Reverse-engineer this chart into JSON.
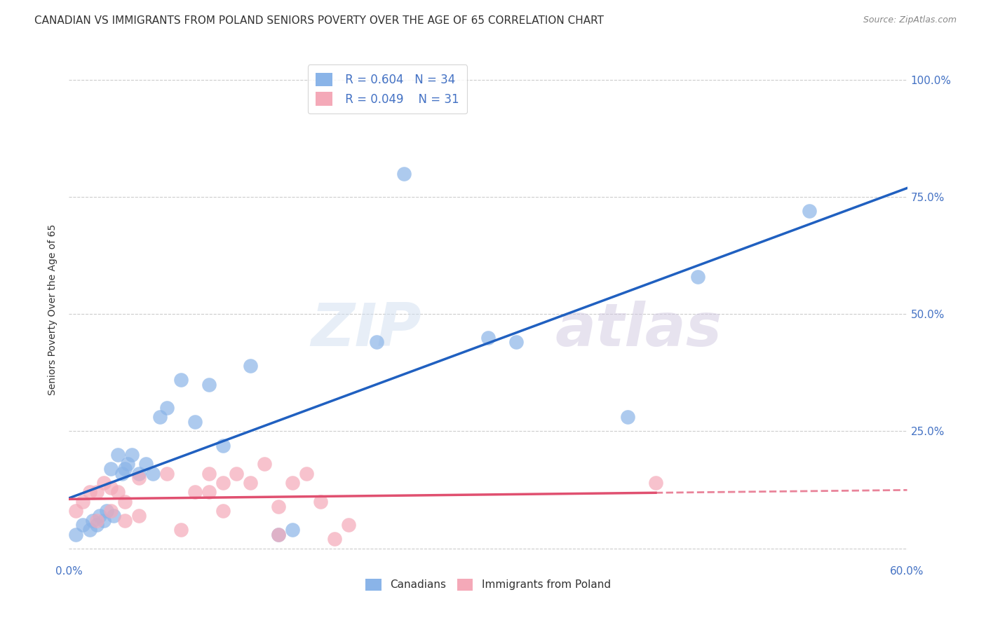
{
  "title": "CANADIAN VS IMMIGRANTS FROM POLAND SENIORS POVERTY OVER THE AGE OF 65 CORRELATION CHART",
  "source": "Source: ZipAtlas.com",
  "ylabel": "Seniors Poverty Over the Age of 65",
  "xlim": [
    0.0,
    0.6
  ],
  "ylim": [
    -0.03,
    1.05
  ],
  "xticks": [
    0.0,
    0.1,
    0.2,
    0.3,
    0.4,
    0.5,
    0.6
  ],
  "xticklabels": [
    "0.0%",
    "",
    "",
    "",
    "",
    "",
    "60.0%"
  ],
  "yticks": [
    0.0,
    0.25,
    0.5,
    0.75,
    1.0
  ],
  "yticklabels_right": [
    "",
    "25.0%",
    "50.0%",
    "75.0%",
    "100.0%"
  ],
  "legend_R_canadian": "R = 0.604",
  "legend_N_canadian": "N = 34",
  "legend_R_poland": "R = 0.049",
  "legend_N_poland": "N = 31",
  "canadian_color": "#8ab4e8",
  "poland_color": "#f4a9b8",
  "trend_canadian_color": "#2060c0",
  "trend_poland_color": "#e05070",
  "watermark_zip": "ZIP",
  "watermark_atlas": "atlas",
  "canadians_x": [
    0.005,
    0.01,
    0.015,
    0.017,
    0.02,
    0.022,
    0.025,
    0.027,
    0.03,
    0.032,
    0.035,
    0.038,
    0.04,
    0.042,
    0.045,
    0.05,
    0.055,
    0.06,
    0.065,
    0.07,
    0.08,
    0.09,
    0.1,
    0.11,
    0.13,
    0.15,
    0.16,
    0.22,
    0.24,
    0.3,
    0.32,
    0.4,
    0.45,
    0.53
  ],
  "canadians_y": [
    0.03,
    0.05,
    0.04,
    0.06,
    0.05,
    0.07,
    0.06,
    0.08,
    0.17,
    0.07,
    0.2,
    0.16,
    0.17,
    0.18,
    0.2,
    0.16,
    0.18,
    0.16,
    0.28,
    0.3,
    0.36,
    0.27,
    0.35,
    0.22,
    0.39,
    0.03,
    0.04,
    0.44,
    0.8,
    0.45,
    0.44,
    0.28,
    0.58,
    0.72
  ],
  "poland_x": [
    0.005,
    0.01,
    0.015,
    0.02,
    0.02,
    0.025,
    0.03,
    0.03,
    0.035,
    0.04,
    0.04,
    0.05,
    0.05,
    0.07,
    0.08,
    0.09,
    0.1,
    0.1,
    0.11,
    0.11,
    0.12,
    0.13,
    0.14,
    0.15,
    0.15,
    0.16,
    0.17,
    0.18,
    0.19,
    0.2,
    0.42
  ],
  "poland_y": [
    0.08,
    0.1,
    0.12,
    0.12,
    0.06,
    0.14,
    0.08,
    0.13,
    0.12,
    0.06,
    0.1,
    0.15,
    0.07,
    0.16,
    0.04,
    0.12,
    0.16,
    0.12,
    0.14,
    0.08,
    0.16,
    0.14,
    0.18,
    0.03,
    0.09,
    0.14,
    0.16,
    0.1,
    0.02,
    0.05,
    0.14
  ],
  "background_color": "#ffffff",
  "grid_color": "#cccccc",
  "title_fontsize": 11,
  "axis_label_fontsize": 10,
  "tick_fontsize": 11,
  "legend_fontsize": 12
}
